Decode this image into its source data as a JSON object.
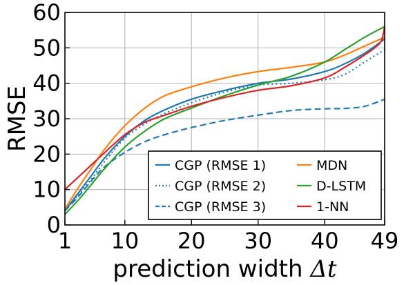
{
  "chart_data": {
    "type": "line",
    "xlabel": "prediction width",
    "xlabel_symbol": "Δt",
    "ylabel": "RMSE",
    "xlim": [
      1,
      49
    ],
    "ylim": [
      0,
      60
    ],
    "x_ticks": [
      1,
      10,
      20,
      30,
      40,
      49
    ],
    "y_ticks": [
      0,
      10,
      20,
      30,
      40,
      50,
      60
    ],
    "grid": true,
    "legend_position": "lower-right",
    "series": [
      {
        "name": "CGP (RMSE 1)",
        "color": "#1f77b4",
        "dash": "solid",
        "x": [
          1,
          3,
          5,
          7,
          10,
          13,
          16,
          20,
          25,
          30,
          35,
          40,
          43,
          46,
          49
        ],
        "y": [
          4,
          9,
          14,
          19,
          25,
          29.5,
          32.5,
          35.5,
          38,
          40,
          41.2,
          43.3,
          45.5,
          48.5,
          52.5
        ]
      },
      {
        "name": "CGP (RMSE 2)",
        "color": "#1f77b4",
        "dash": "dotted",
        "x": [
          1,
          3,
          5,
          7,
          10,
          13,
          16,
          20,
          25,
          30,
          35,
          40,
          43,
          46,
          49
        ],
        "y": [
          4,
          8.5,
          13,
          18,
          24.5,
          28.5,
          31.5,
          34.5,
          37.5,
          39.5,
          40,
          41,
          42.5,
          46,
          49.5
        ]
      },
      {
        "name": "CGP (RMSE 3)",
        "color": "#1f77b4",
        "dash": "dashed",
        "x": [
          1,
          3,
          5,
          7,
          10,
          13,
          16,
          20,
          25,
          30,
          35,
          40,
          43,
          46,
          49
        ],
        "y": [
          4,
          8,
          12.5,
          16.5,
          20.5,
          23.5,
          25.5,
          27.5,
          29.5,
          31,
          32.3,
          32.8,
          32.9,
          33.5,
          35.5
        ]
      },
      {
        "name": "MDN",
        "color": "#ff7f0e",
        "dash": "solid",
        "x": [
          1,
          3,
          5,
          7,
          10,
          13,
          16,
          20,
          25,
          30,
          35,
          40,
          43,
          46,
          49
        ],
        "y": [
          4.5,
          10.5,
          16,
          21.5,
          28,
          33,
          36.5,
          39,
          41.5,
          43.3,
          44.5,
          46,
          48,
          50.5,
          53
        ]
      },
      {
        "name": "D-LSTM",
        "color": "#2ca02c",
        "dash": "solid",
        "x": [
          1,
          3,
          5,
          7,
          10,
          13,
          16,
          20,
          25,
          30,
          35,
          40,
          43,
          46,
          49
        ],
        "y": [
          3,
          7,
          11.5,
          16,
          22,
          26.5,
          30,
          33,
          36.5,
          39.5,
          42,
          46,
          49.5,
          53,
          56
        ]
      },
      {
        "name": "1-NN",
        "color": "#d62728",
        "dash": "solid",
        "x": [
          1,
          3,
          5,
          7,
          10,
          13,
          16,
          20,
          25,
          30,
          35,
          40,
          43,
          46,
          47.5,
          48.5,
          49
        ],
        "y": [
          10,
          13.5,
          17,
          20.5,
          25.5,
          29,
          31,
          33.5,
          36,
          38,
          39.3,
          41.5,
          44.5,
          48,
          50,
          52,
          56
        ]
      }
    ]
  }
}
